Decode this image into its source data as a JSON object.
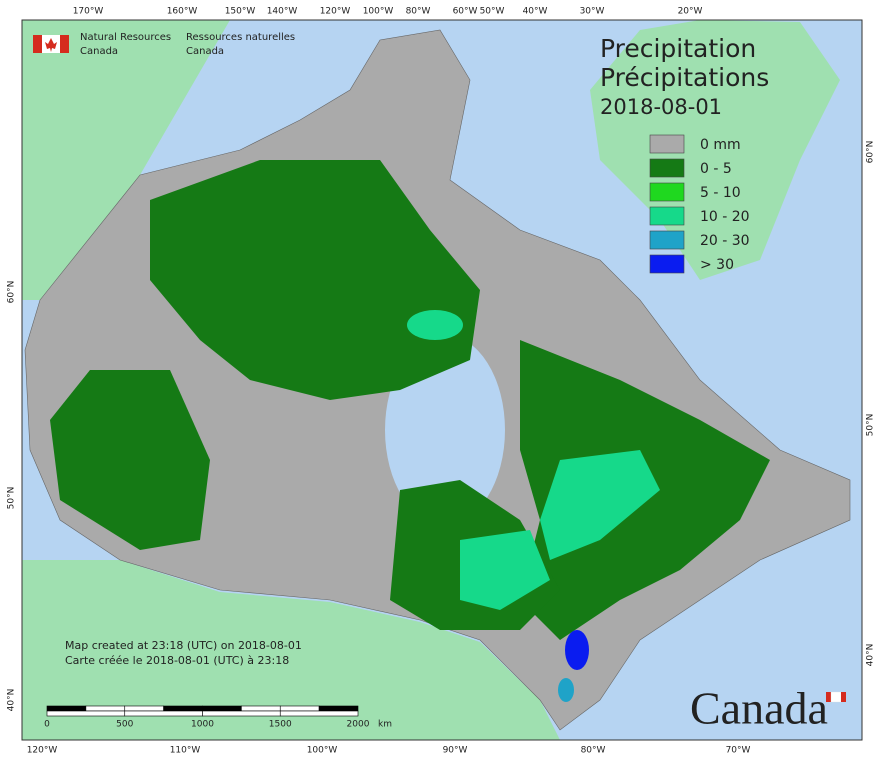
{
  "header": {
    "agency_en": [
      "Natural Resources",
      "Canada"
    ],
    "agency_fr": [
      "Ressources naturelles",
      "Canada"
    ]
  },
  "title": {
    "line1": "Precipitation",
    "line2": "Précipitations",
    "date": "2018-08-01"
  },
  "legend": {
    "items": [
      {
        "label": "0 mm",
        "color": "#aaaaaa"
      },
      {
        "label": "0 - 5",
        "color": "#157a15"
      },
      {
        "label": "5 - 10",
        "color": "#1fd81f"
      },
      {
        "label": "10 - 20",
        "color": "#16d98a"
      },
      {
        "label": "20 - 30",
        "color": "#1fa3c8"
      },
      {
        "label": "> 30",
        "color": "#0a1cf0"
      }
    ]
  },
  "graticule": {
    "top": [
      "170°W",
      "160°W",
      "150°W",
      "140°W",
      "120°W",
      "100°W",
      "80°W",
      "60°W",
      "50°W",
      "40°W",
      "30°W",
      "20°W"
    ],
    "bottom": [
      "120°W",
      "110°W",
      "100°W",
      "90°W",
      "80°W",
      "70°W"
    ],
    "left": [
      "60°N",
      "50°N",
      "40°N"
    ],
    "right": [
      "60°N",
      "50°N",
      "40°N"
    ]
  },
  "scale": {
    "ticks": [
      0,
      500,
      1000,
      1500,
      2000
    ],
    "unit": "km"
  },
  "notes": [
    "Map created at 23:18 (UTC) on 2018-08-01",
    "Carte créée le 2018-08-01 (UTC) à 23:18"
  ],
  "wordmark": "Canada"
}
